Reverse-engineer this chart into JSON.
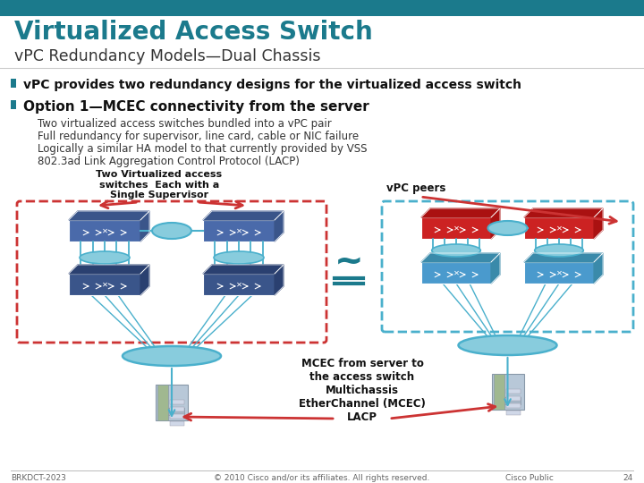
{
  "title_main": "Virtualized Access Switch",
  "title_sub": "vPC Redundancy Models—Dual Chassis",
  "header_bar_color": "#1b7a8c",
  "bg_color": "#ffffff",
  "title_main_color": "#1b7a8c",
  "title_sub_color": "#333333",
  "bullet_color": "#1b7a8c",
  "bullet1_text": "vPC provides two redundancy designs for the virtualized access switch",
  "bullet2_text": "Option 1—MCEC connectivity from the server",
  "sub_bullets": [
    "Two virtualized access switches bundled into a vPC pair",
    "Full redundancy for supervisor, line card, cable or NIC failure",
    "Logically a similar HA model to that currently provided by VSS",
    "802.3ad Link Aggregation Control Protocol (LACP)"
  ],
  "label_two_virt": "Two Virtualized access\nswitches  Each with a\nSingle Supervisor",
  "label_vpc_peers": "vPC peers",
  "label_mcec": "MCEC from server to\nthe access switch\nMultichassis\nEtherChannel (MCEC)\nLACP",
  "footer_left": "BRKDCT-2023",
  "footer_center": "© 2010 Cisco and/or its affiliates. All rights reserved.",
  "footer_right": "Cisco Public",
  "footer_page": "24",
  "switch_blue_top": "#4a6aaa",
  "switch_blue_bot": "#3a558a",
  "switch_red": "#cc2222",
  "switch_blue_chassis": "#4a9acd",
  "connector_fill": "#88ccdd",
  "connector_edge": "#4ab0cc",
  "dashed_red": "#cc3333",
  "dashed_blue": "#4ab0cc",
  "arrow_red": "#cc3333",
  "arrow_teal": "#1b7a8c",
  "equal_color": "#1b7a8c",
  "server_green": "#a0b890",
  "server_grey": "#b0b8c8"
}
